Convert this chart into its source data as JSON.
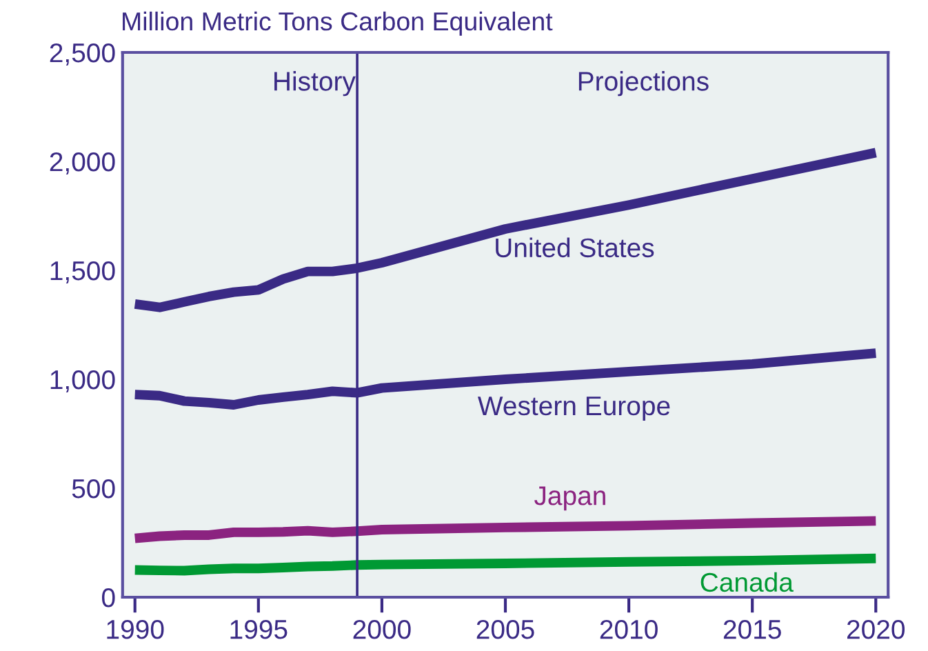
{
  "chart_data": {
    "type": "line",
    "ylabel": "Million Metric Tons Carbon Equivalent",
    "x": [
      1990,
      1991,
      1992,
      1993,
      1994,
      1995,
      1996,
      1997,
      1998,
      1999,
      2000,
      2005,
      2010,
      2015,
      2020
    ],
    "xlim": [
      1989.5,
      2020.5
    ],
    "xticks": [
      1990,
      1995,
      2000,
      2005,
      2010,
      2015,
      2020
    ],
    "ylim": [
      0,
      2500
    ],
    "yticks": [
      0,
      {
        "value": 500,
        "label": "500"
      },
      {
        "value": 1000,
        "label": "1,000"
      },
      {
        "value": 1500,
        "label": "1,500"
      },
      {
        "value": 2000,
        "label": "2,000"
      },
      {
        "value": 2500,
        "label": "2,500"
      }
    ],
    "grid": false,
    "marker": "none",
    "line_style": "solid",
    "series": [
      {
        "name": "United States",
        "color": "#3a2a85",
        "values": [
          1345,
          1330,
          1355,
          1380,
          1400,
          1410,
          1460,
          1495,
          1495,
          1510,
          1535,
          1690,
          1800,
          1920,
          2040
        ]
      },
      {
        "name": "Western Europe",
        "color": "#3a2a85",
        "values": [
          930,
          925,
          900,
          893,
          883,
          905,
          918,
          930,
          945,
          938,
          960,
          1000,
          1035,
          1070,
          1120
        ]
      },
      {
        "name": "Japan",
        "color": "#8b2380",
        "values": [
          270,
          280,
          285,
          285,
          298,
          298,
          300,
          305,
          298,
          303,
          310,
          320,
          328,
          340,
          350
        ]
      },
      {
        "name": "Canada",
        "color": "#009933",
        "values": [
          125,
          123,
          122,
          128,
          132,
          132,
          136,
          141,
          143,
          148,
          150,
          155,
          162,
          168,
          178
        ]
      }
    ],
    "ref_lines": [
      {
        "axis": "x",
        "value": 1999,
        "color": "#3a2a85"
      }
    ],
    "annotations": [
      "History",
      "Projections"
    ]
  }
}
